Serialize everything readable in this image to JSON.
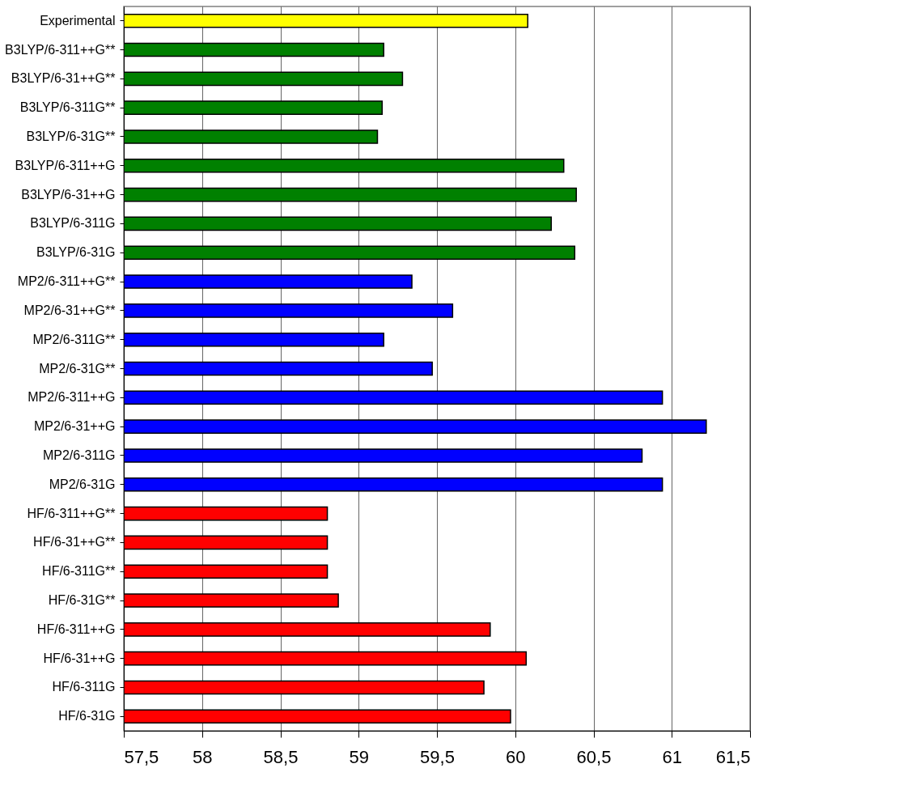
{
  "chart_data": {
    "type": "bar",
    "orientation": "horizontal",
    "categories": [
      "Experimental",
      "B3LYP/6-311++G**",
      "B3LYP/6-31++G**",
      "B3LYP/6-311G**",
      "B3LYP/6-31G**",
      "B3LYP/6-311++G",
      "B3LYP/6-31++G",
      "B3LYP/6-311G",
      "B3LYP/6-31G",
      "MP2/6-311++G**",
      "MP2/6-31++G**",
      "MP2/6-311G**",
      "MP2/6-31G**",
      "MP2/6-311++G",
      "MP2/6-31++G",
      "MP2/6-311G",
      "MP2/6-31G",
      "HF/6-311++G**",
      "HF/6-31++G**",
      "HF/6-311G**",
      "HF/6-31G**",
      "HF/6-311++G",
      "HF/6-31++G",
      "HF/6-311G",
      "HF/6-31G"
    ],
    "values": [
      60.08,
      59.16,
      59.28,
      59.15,
      59.12,
      60.31,
      60.39,
      60.23,
      60.38,
      59.34,
      59.6,
      59.16,
      59.47,
      60.94,
      61.22,
      60.81,
      60.94,
      58.8,
      58.8,
      58.8,
      58.87,
      59.84,
      60.07,
      59.8,
      59.97
    ],
    "colors": [
      "#ffff00",
      "#008000",
      "#008000",
      "#008000",
      "#008000",
      "#008000",
      "#008000",
      "#008000",
      "#008000",
      "#0000ff",
      "#0000ff",
      "#0000ff",
      "#0000ff",
      "#0000ff",
      "#0000ff",
      "#0000ff",
      "#0000ff",
      "#ff0000",
      "#ff0000",
      "#ff0000",
      "#ff0000",
      "#ff0000",
      "#ff0000",
      "#ff0000",
      "#ff0000"
    ],
    "xlim": [
      57.5,
      61.5
    ],
    "xticks": [
      {
        "value": 57.5,
        "label": "57,5"
      },
      58,
      {
        "value": 58.5,
        "label": "58,5"
      },
      59,
      {
        "value": 59.5,
        "label": "59,5"
      },
      60,
      {
        "value": 60.5,
        "label": "60,5"
      },
      61,
      {
        "value": 61.5,
        "label": "61,5"
      }
    ],
    "grid": "x",
    "legend": false
  }
}
